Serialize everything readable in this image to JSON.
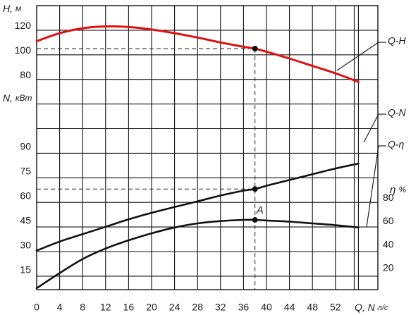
{
  "chart_data": {
    "type": "line",
    "axis_labels": {
      "h_prefix": "H,",
      "h_unit": "м",
      "n_prefix": "N,",
      "n_unit": "кВт",
      "eta_prefix": "η",
      "eta_unit": "%",
      "q_prefix": "Q, N",
      "q_unit": "л/с"
    },
    "x_ticks": [
      "0",
      "4",
      "8",
      "12",
      "16",
      "20",
      "24",
      "28",
      "32",
      "36",
      "40",
      "44",
      "48",
      "52"
    ],
    "h_ticks": [
      "80",
      "100",
      "120"
    ],
    "n_ticks": [
      "15",
      "30",
      "45",
      "60",
      "75",
      "90"
    ],
    "eta_ticks": [
      "20",
      "40",
      "60",
      "80"
    ],
    "series": [
      {
        "name": "Q-H",
        "color": "#e01010",
        "axis": "H",
        "x": [
          0,
          4,
          8,
          12,
          16,
          20,
          24,
          28,
          32,
          36,
          38,
          40,
          44,
          48,
          52,
          56
        ],
        "y": [
          108,
          114.5,
          118.5,
          120,
          119.5,
          117.5,
          114.5,
          111,
          107,
          103.5,
          102,
          99.5,
          94,
          88,
          82,
          75
        ]
      },
      {
        "name": "Q-N",
        "color": "#111111",
        "axis": "N",
        "x": [
          0,
          4,
          8,
          12,
          16,
          20,
          24,
          28,
          32,
          36,
          38,
          40,
          44,
          48,
          52,
          56
        ],
        "y": [
          27,
          32.5,
          37,
          41.5,
          46,
          50,
          53.5,
          57,
          60.5,
          63.5,
          64.5,
          66.5,
          70,
          73.5,
          77,
          80
        ]
      },
      {
        "name": "Q-η",
        "color": "#111111",
        "axis": "eta",
        "x": [
          0,
          4,
          8,
          12,
          16,
          20,
          24,
          28,
          32,
          36,
          38,
          40,
          44,
          48,
          52,
          56
        ],
        "y": [
          3,
          16,
          28,
          37,
          44,
          50,
          55,
          58.5,
          60.5,
          61.5,
          61.5,
          61,
          60,
          58.5,
          57,
          55
        ]
      }
    ],
    "operating_point": {
      "label": "A",
      "x": 38,
      "H": 102,
      "N": 64.5,
      "eta": 61.5
    },
    "grid": true
  }
}
